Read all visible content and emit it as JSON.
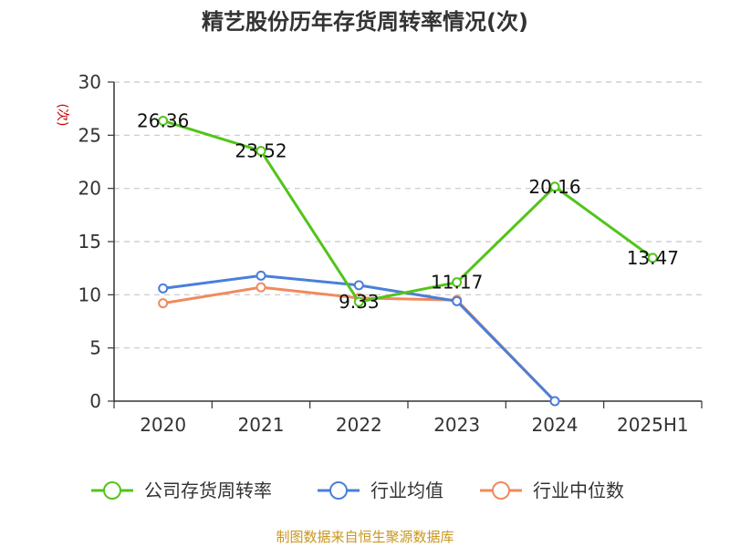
{
  "chart_data": {
    "type": "line",
    "title": "精艺股份历年存货周转率情况(次)",
    "unit_label": "(次)",
    "categories": [
      "2020",
      "2021",
      "2022",
      "2023",
      "2024",
      "2025H1"
    ],
    "ylim": [
      0,
      30
    ],
    "yticks": [
      0,
      5,
      10,
      15,
      20,
      25,
      30
    ],
    "grid": true,
    "legend_position": "bottom",
    "series": [
      {
        "name": "公司存货周转率",
        "color": "#52c41a",
        "values": [
          26.36,
          23.52,
          9.33,
          11.17,
          20.16,
          13.47
        ],
        "data_labels": [
          "26.36",
          "23.52",
          "9.33",
          "11.17",
          "20.16",
          "13.47"
        ]
      },
      {
        "name": "行业均值",
        "color": "#4a7fd9",
        "values": [
          10.6,
          11.8,
          10.9,
          9.4,
          0,
          null
        ]
      },
      {
        "name": "行业中位数",
        "color": "#f08a5d",
        "values": [
          9.2,
          10.7,
          9.7,
          9.5,
          0,
          null
        ]
      }
    ],
    "source": "制图数据来自恒生聚源数据库"
  }
}
